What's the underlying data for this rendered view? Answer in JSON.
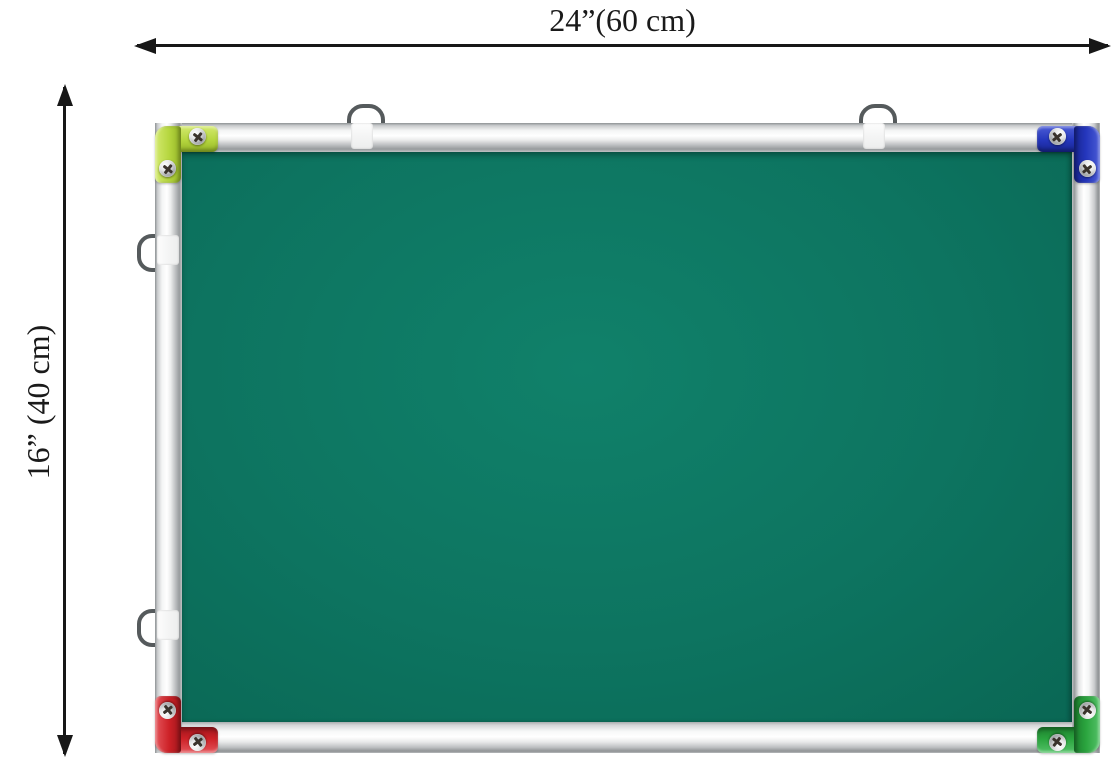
{
  "annotations": {
    "width_label": "24”(60 cm)",
    "height_label": "16” (40 cm)"
  },
  "board": {
    "surface_color": "#0D7460",
    "frame_color": "#DCDDDF",
    "seam_color": "#5F6F6A",
    "corner_caps": [
      {
        "position": "top-left",
        "color": "#B5D63E"
      },
      {
        "position": "top-right",
        "color": "#2436BC"
      },
      {
        "position": "bottom-left",
        "color": "#CD2127"
      },
      {
        "position": "bottom-right",
        "color": "#2AA43E"
      }
    ],
    "hooks": {
      "top_count": 2,
      "left_count": 2
    },
    "screws_per_corner": 2
  }
}
